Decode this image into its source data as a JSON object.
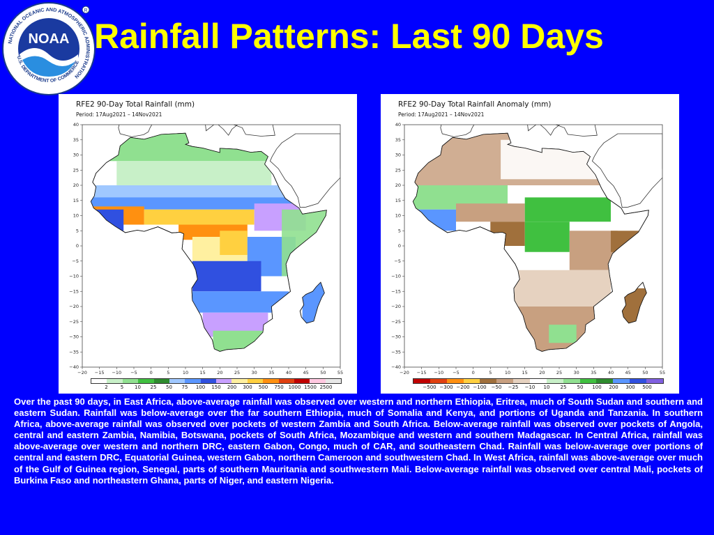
{
  "header": {
    "title": "Rainfall Patterns: Last 90 Days",
    "logo": {
      "text": "NOAA",
      "ring_text": "NATIONAL OCEANIC AND ATMOSPHERIC ADMINISTRATION",
      "bottom_text": "U.S. DEPARTMENT OF COMMERCE"
    }
  },
  "maps": {
    "left": {
      "title": "RFE2 90-Day Total Rainfall (mm)",
      "period": "Period: 17Aug2021 – 14Nov2021",
      "y_ticks": [
        "40",
        "35",
        "30",
        "25",
        "20",
        "15",
        "10",
        "5",
        "0",
        "−5",
        "−10",
        "−15",
        "−20",
        "−25",
        "−30",
        "−35",
        "−40"
      ],
      "x_ticks": [
        "−20",
        "−15",
        "−10",
        "−5",
        "0",
        "5",
        "10",
        "15",
        "20",
        "25",
        "30",
        "35",
        "40",
        "45",
        "50",
        "55"
      ],
      "legend_labels": [
        "2",
        "5",
        "10",
        "25",
        "50",
        "75",
        "100",
        "150",
        "200",
        "300",
        "500",
        "750",
        "1000",
        "1500",
        "2500"
      ],
      "legend_colors": [
        "#ffffff",
        "#c8f0c8",
        "#90e090",
        "#40c040",
        "#2e8b2e",
        "#a0c8ff",
        "#5a96ff",
        "#3050e0",
        "#c8a0ff",
        "#fff0a0",
        "#ffd040",
        "#ff9010",
        "#e04010",
        "#c00000",
        "#ffc8e0",
        "#e8e8e8"
      ]
    },
    "right": {
      "title": "RFE2 90-Day Total Rainfall Anomaly (mm)",
      "period": "Period: 17Aug2021 – 14Nov2021",
      "y_ticks": [
        "40",
        "35",
        "30",
        "25",
        "20",
        "15",
        "10",
        "5",
        "0",
        "−5",
        "−10",
        "−15",
        "−20",
        "−25",
        "−30",
        "−35",
        "−40"
      ],
      "x_ticks": [
        "−20",
        "−15",
        "−10",
        "−5",
        "0",
        "5",
        "10",
        "15",
        "20",
        "25",
        "30",
        "35",
        "40",
        "45",
        "50",
        "55"
      ],
      "legend_labels": [
        "−500",
        "−300",
        "−200",
        "−100",
        "−50",
        "−25",
        "−10",
        "10",
        "25",
        "50",
        "100",
        "200",
        "300",
        "500"
      ],
      "legend_colors": [
        "#c00000",
        "#e04010",
        "#ff9010",
        "#ffd040",
        "#a0703c",
        "#c8a080",
        "#e6d2c0",
        "#ffffff",
        "#c8f0c8",
        "#90e090",
        "#40c040",
        "#2e8b2e",
        "#5a96ff",
        "#3050e0",
        "#8060e0"
      ]
    }
  },
  "summary": "Over the past 90 days, in East Africa, above-average rainfall was observed over western and northern Ethiopia, Eritrea, much of South Sudan and southern and eastern Sudan. Rainfall was below-average over the far southern Ethiopia, much of Somalia and Kenya, and portions of Uganda and Tanzania. In southern Africa, above-average rainfall was observed over pockets of western Zambia and South Africa. Below-average rainfall was observed over pockets of Angola, central and eastern Zambia, Namibia, Botswana, pockets of South Africa, Mozambique and western and southern Madagascar. In Central Africa, rainfall was above-average over western and northern DRC, eastern Gabon, Congo, much of CAR, and southeastern Chad.  Rainfall was below-average over portions of central and eastern DRC, Equatorial Guinea, western Gabon, northern Cameroon and southwestern Chad. In West Africa, rainfall was above-average over much of the Gulf of Guinea region, Senegal, parts of southern Mauritania and southwestern Mali. Below-average rainfall was observed over central Mali, pockets of Burkina Faso and northeastern Ghana, parts of Niger, and eastern Nigeria.",
  "colors": {
    "background": "#0000ff",
    "title": "#ffff00",
    "text": "#ffffff"
  }
}
